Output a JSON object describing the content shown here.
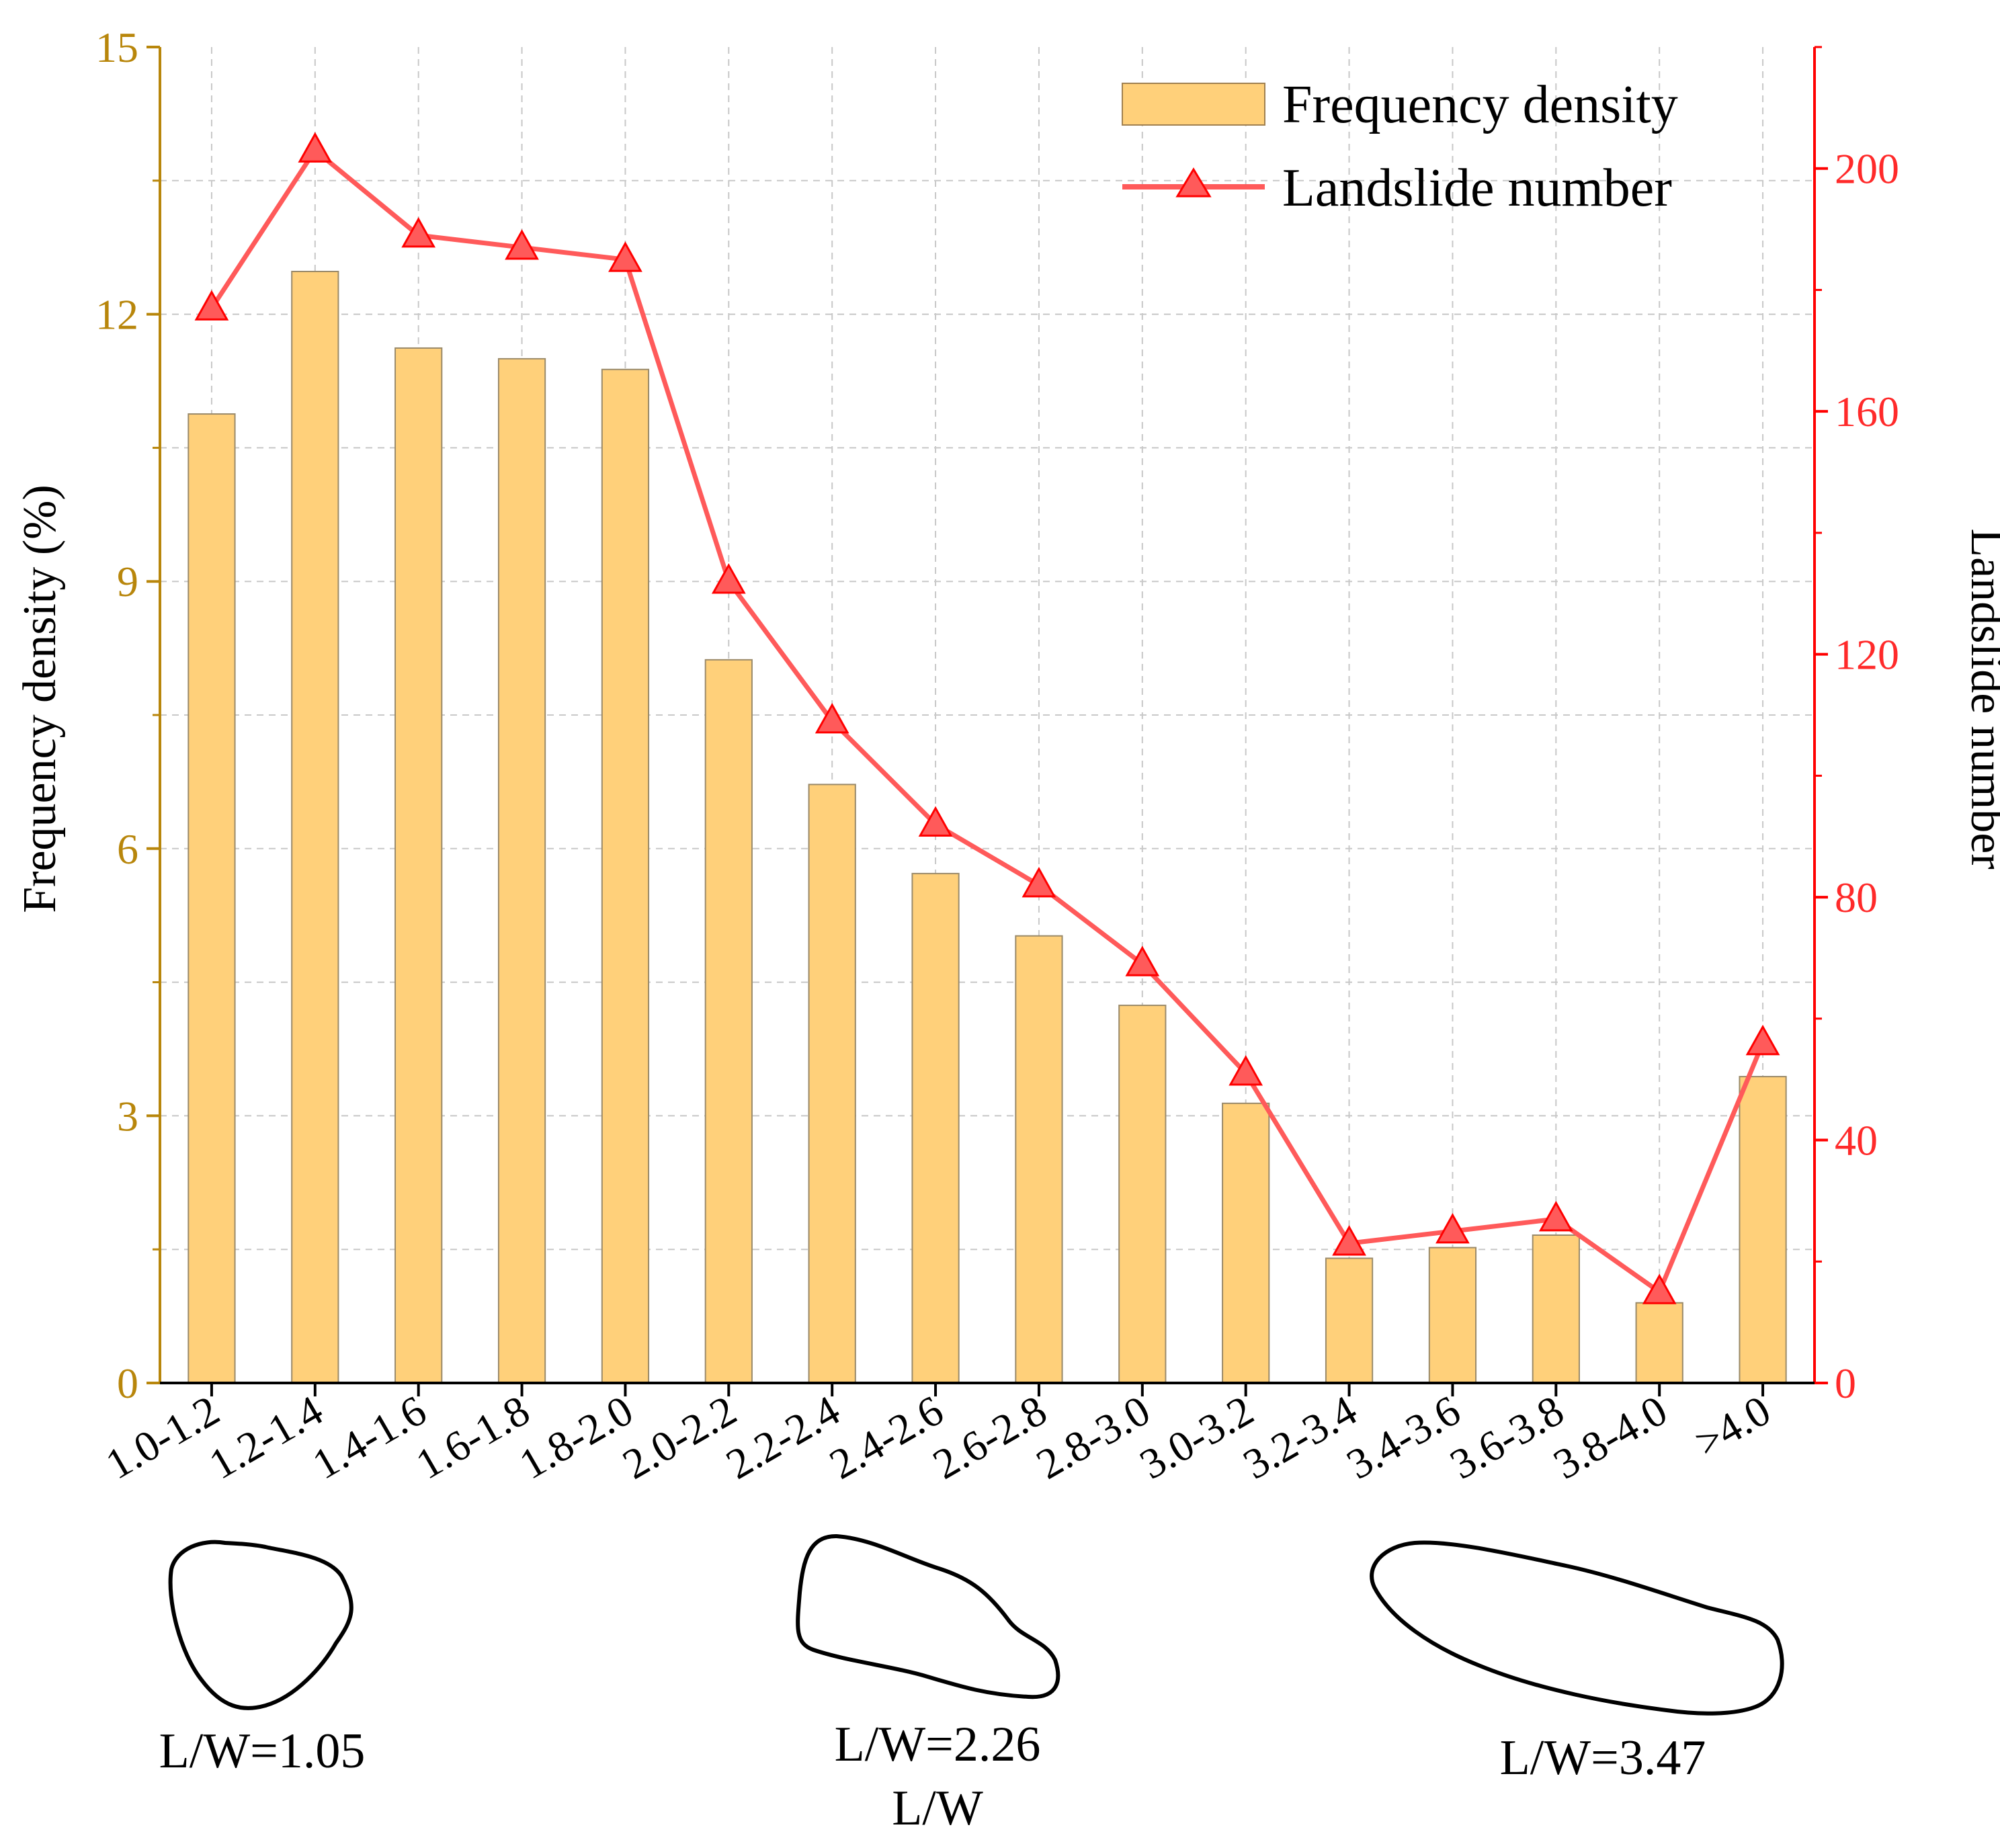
{
  "chart_data": {
    "type": "bar",
    "xlabel": "L/W",
    "categories": [
      "1.0-1.2",
      "1.2-1.4",
      "1.4-1.6",
      "1.6-1.8",
      "1.8-2.0",
      "2.0-2.2",
      "2.2-2.4",
      "2.4-2.6",
      "2.6-2.8",
      "2.8-3.0",
      "3.0-3.2",
      "3.2-3.4",
      "3.4-3.6",
      "3.6-3.8",
      "3.8-4.0",
      ">4.0"
    ],
    "y_left": {
      "label": "Frequency density (%)",
      "lim": [
        0,
        15
      ],
      "ticks": [
        "0",
        "3",
        "6",
        "9",
        "12",
        "15"
      ],
      "color": "#B8860B"
    },
    "y_right": {
      "label": "Landslide number",
      "lim": [
        0,
        220
      ],
      "ticks": [
        "0",
        "40",
        "80",
        "120",
        "160",
        "200"
      ],
      "color": "#FF0000"
    },
    "grid": true,
    "legend_position": "top-right",
    "series": [
      {
        "name": "Frequency density",
        "kind": "bar",
        "axis": "left",
        "color": "#FFD07A",
        "values": [
          10.88,
          12.48,
          11.62,
          11.5,
          11.38,
          8.12,
          6.72,
          5.72,
          5.02,
          4.24,
          3.14,
          1.4,
          1.52,
          1.66,
          0.9,
          3.44
        ]
      },
      {
        "name": "Landslide number",
        "kind": "line",
        "marker": "triangle",
        "axis": "right",
        "color": "#FF5A5A",
        "values": [
          177,
          203,
          189,
          187,
          185,
          132,
          109,
          92,
          82,
          69,
          51,
          23,
          25,
          27,
          15,
          56
        ]
      }
    ],
    "annotations": [
      {
        "text": "L/W=1.05",
        "category": "1.0-1.2"
      },
      {
        "text": "L/W=2.26",
        "category": "2.2-2.4"
      },
      {
        "text": "L/W=3.47",
        "category": "3.4-3.6"
      }
    ]
  }
}
